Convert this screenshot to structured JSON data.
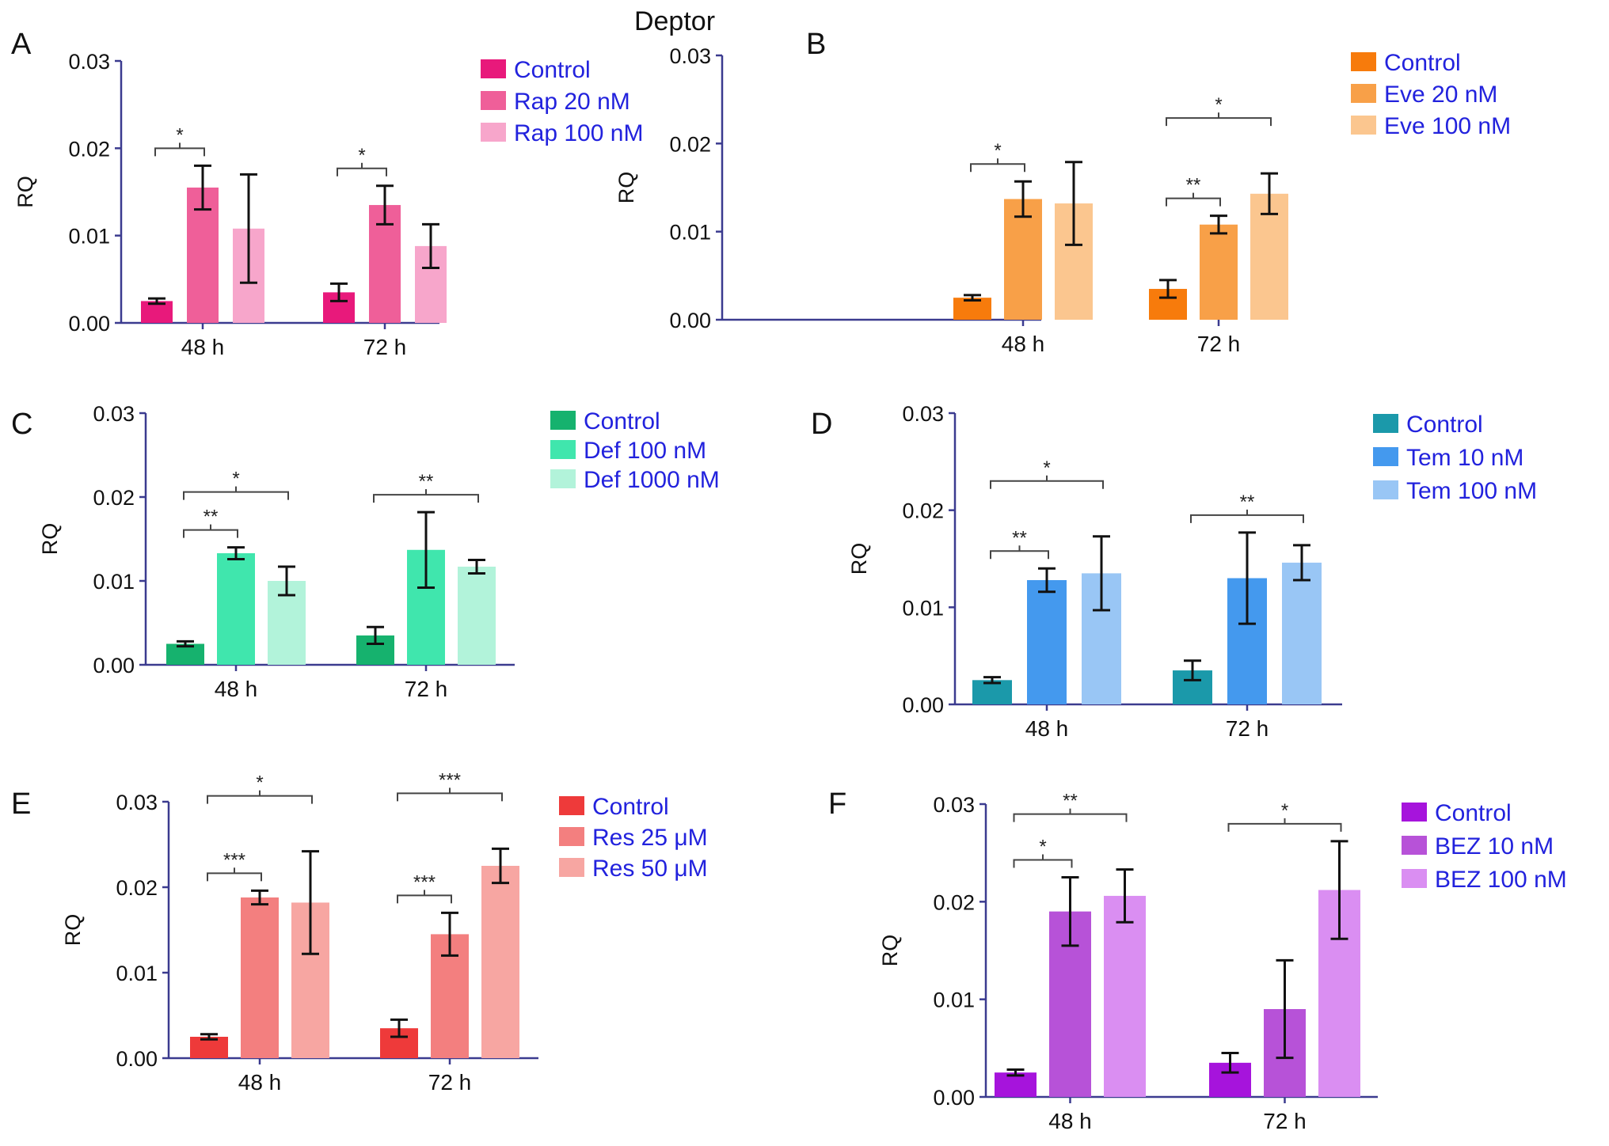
{
  "figure_title": "Deptor",
  "chart_data": [
    {
      "panel": "A",
      "type": "bar",
      "ylabel": "RQ",
      "ylim": [
        0,
        0.03
      ],
      "yticks": [
        "0.00",
        "0.01",
        "0.02",
        "0.03"
      ],
      "categories": [
        "48 h",
        "72 h"
      ],
      "colors": [
        "#e8197b",
        "#ef5f99",
        "#f7a6cb"
      ],
      "series": [
        {
          "name": "Control",
          "values": [
            0.0025,
            0.0035
          ],
          "errors": [
            0.0003,
            0.001
          ]
        },
        {
          "name": "Rap 20 nM",
          "values": [
            0.0155,
            0.0135
          ],
          "errors": [
            0.0025,
            0.0022
          ]
        },
        {
          "name": "Rap 100 nM",
          "values": [
            0.0108,
            0.0088
          ],
          "errors": [
            0.0062,
            0.0025
          ]
        }
      ],
      "significance": [
        {
          "group": 0,
          "from": 0,
          "to": 1,
          "label": "*"
        },
        {
          "group": 1,
          "from": 0,
          "to": 1,
          "label": "*"
        }
      ]
    },
    {
      "panel": "B",
      "type": "bar",
      "ylabel": "RQ",
      "ylim": [
        0,
        0.03
      ],
      "yticks": [
        "0.00",
        "0.01",
        "0.02",
        "0.03"
      ],
      "categories": [
        "48 h",
        "72 h"
      ],
      "colors": [
        "#f77b0c",
        "#f8a048",
        "#fbc68f"
      ],
      "series": [
        {
          "name": "Control",
          "values": [
            0.0025,
            0.0035
          ],
          "errors": [
            0.0003,
            0.001
          ]
        },
        {
          "name": "Eve 20 nM",
          "values": [
            0.0137,
            0.0108
          ],
          "errors": [
            0.002,
            0.001
          ]
        },
        {
          "name": "Eve 100 nM",
          "values": [
            0.0132,
            0.0143
          ],
          "errors": [
            0.0047,
            0.0023
          ]
        }
      ],
      "significance": [
        {
          "group": 0,
          "from": 0,
          "to": 1,
          "label": "*"
        },
        {
          "group": 1,
          "from": 0,
          "to": 1,
          "label": "**"
        },
        {
          "group": 1,
          "from": 0,
          "to": 2,
          "label": "*"
        }
      ]
    },
    {
      "panel": "C",
      "type": "bar",
      "ylabel": "RQ",
      "ylim": [
        0,
        0.03
      ],
      "yticks": [
        "0.00",
        "0.01",
        "0.02",
        "0.03"
      ],
      "categories": [
        "48 h",
        "72 h"
      ],
      "colors": [
        "#16b26e",
        "#40e6ad",
        "#b2f3da"
      ],
      "series": [
        {
          "name": "Control",
          "values": [
            0.0025,
            0.0035
          ],
          "errors": [
            0.0003,
            0.001
          ]
        },
        {
          "name": "Def 100 nM",
          "values": [
            0.0133,
            0.0137
          ],
          "errors": [
            0.0007,
            0.0045
          ]
        },
        {
          "name": "Def 1000 nM",
          "values": [
            0.01,
            0.0117
          ],
          "errors": [
            0.0017,
            0.0008
          ]
        }
      ],
      "significance": [
        {
          "group": 0,
          "from": 0,
          "to": 1,
          "label": "**"
        },
        {
          "group": 0,
          "from": 0,
          "to": 2,
          "label": "*"
        },
        {
          "group": 1,
          "from": 0,
          "to": 2,
          "label": "**"
        }
      ]
    },
    {
      "panel": "D",
      "type": "bar",
      "ylabel": "RQ",
      "ylim": [
        0,
        0.03
      ],
      "yticks": [
        "0.00",
        "0.01",
        "0.02",
        "0.03"
      ],
      "categories": [
        "48 h",
        "72 h"
      ],
      "colors": [
        "#1b99aa",
        "#4499ee",
        "#99c6f5"
      ],
      "series": [
        {
          "name": "Control",
          "values": [
            0.0025,
            0.0035
          ],
          "errors": [
            0.0003,
            0.001
          ]
        },
        {
          "name": "Tem 10 nM",
          "values": [
            0.0128,
            0.013
          ],
          "errors": [
            0.0012,
            0.0047
          ]
        },
        {
          "name": "Tem 100 nM",
          "values": [
            0.0135,
            0.0146
          ],
          "errors": [
            0.0038,
            0.0018
          ]
        }
      ],
      "significance": [
        {
          "group": 0,
          "from": 0,
          "to": 1,
          "label": "**"
        },
        {
          "group": 0,
          "from": 0,
          "to": 2,
          "label": "*"
        },
        {
          "group": 1,
          "from": 0,
          "to": 2,
          "label": "**"
        }
      ]
    },
    {
      "panel": "E",
      "type": "bar",
      "ylabel": "RQ",
      "ylim": [
        0,
        0.03
      ],
      "yticks": [
        "0.00",
        "0.01",
        "0.02",
        "0.03"
      ],
      "categories": [
        "48 h",
        "72 h"
      ],
      "colors": [
        "#ee3a3a",
        "#f37f7f",
        "#f7a6a2"
      ],
      "series": [
        {
          "name": "Control",
          "values": [
            0.0025,
            0.0035
          ],
          "errors": [
            0.0003,
            0.001
          ]
        },
        {
          "name": "Res 25 μM",
          "values": [
            0.0188,
            0.0145
          ],
          "errors": [
            0.0008,
            0.0025
          ]
        },
        {
          "name": "Res 50 μM",
          "values": [
            0.0182,
            0.0225
          ],
          "errors": [
            0.006,
            0.002
          ]
        }
      ],
      "significance": [
        {
          "group": 0,
          "from": 0,
          "to": 1,
          "label": "***"
        },
        {
          "group": 0,
          "from": 0,
          "to": 2,
          "label": "*"
        },
        {
          "group": 1,
          "from": 0,
          "to": 1,
          "label": "***"
        },
        {
          "group": 1,
          "from": 0,
          "to": 2,
          "label": "***"
        }
      ]
    },
    {
      "panel": "F",
      "type": "bar",
      "ylabel": "RQ",
      "ylim": [
        0,
        0.03
      ],
      "yticks": [
        "0.00",
        "0.01",
        "0.02",
        "0.03"
      ],
      "categories": [
        "48 h",
        "72 h"
      ],
      "colors": [
        "#a614dc",
        "#b752d8",
        "#da8ef2"
      ],
      "series": [
        {
          "name": "Control",
          "values": [
            0.0025,
            0.0035
          ],
          "errors": [
            0.0003,
            0.001
          ]
        },
        {
          "name": "BEZ 10 nM",
          "values": [
            0.019,
            0.009
          ],
          "errors": [
            0.0035,
            0.005
          ]
        },
        {
          "name": "BEZ 100 nM",
          "values": [
            0.0206,
            0.0212
          ],
          "errors": [
            0.0027,
            0.005
          ]
        }
      ],
      "significance": [
        {
          "group": 0,
          "from": 0,
          "to": 1,
          "label": "*"
        },
        {
          "group": 0,
          "from": 0,
          "to": 2,
          "label": "**"
        },
        {
          "group": 1,
          "from": 0,
          "to": 2,
          "label": "*"
        }
      ]
    }
  ]
}
